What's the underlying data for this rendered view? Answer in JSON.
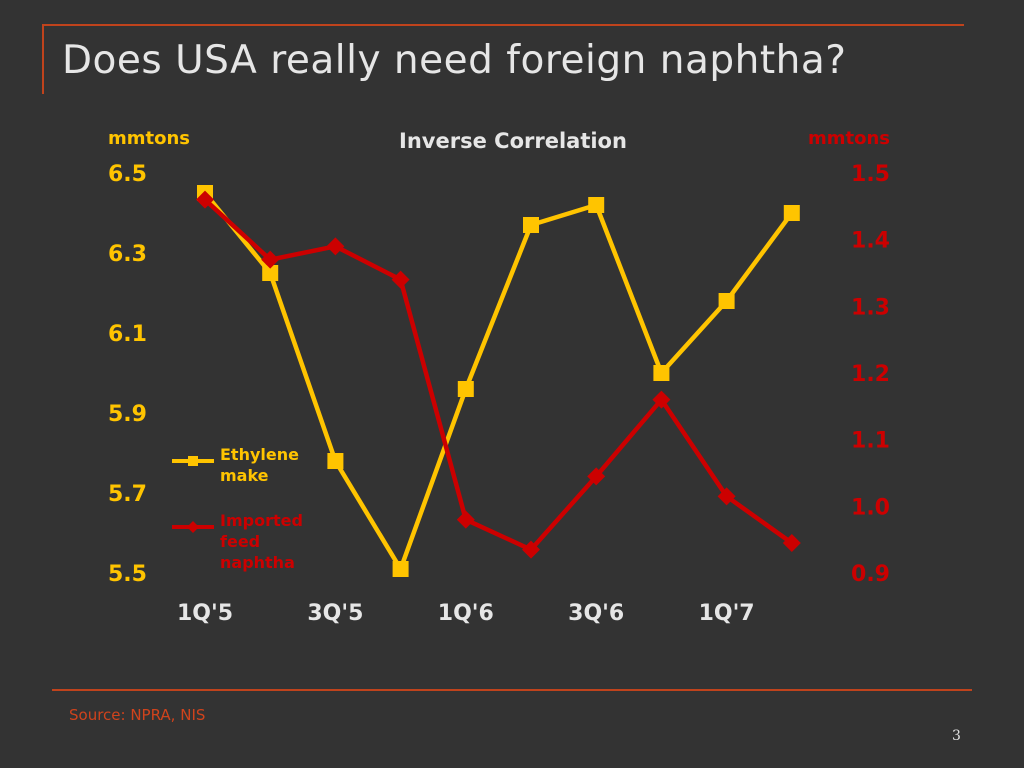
{
  "slide": {
    "title": "Does USA really need foreign naphtha?",
    "source": "Source: NPRA, NIS",
    "page_number": "3"
  },
  "colors": {
    "background": "#333333",
    "ethylene": "#ffc400",
    "naphtha": "#cc0000",
    "rule": "#c0431c",
    "text": "#e6e6e6"
  },
  "chart_data": {
    "type": "line",
    "title": "Inverse Correlation",
    "x": [
      "1Q'5",
      "2Q'5",
      "3Q'5",
      "4Q'5",
      "1Q'6",
      "2Q'6",
      "3Q'6",
      "4Q'6",
      "1Q'7",
      "2Q'7"
    ],
    "x_tick_labels": [
      "1Q'5",
      "3Q'5",
      "1Q'6",
      "3Q'6",
      "1Q'7"
    ],
    "y_left": {
      "label": "mmtons",
      "range": [
        5.5,
        6.5
      ],
      "ticks": [
        "6.5",
        "6.3",
        "6.1",
        "5.9",
        "5.7",
        "5.5"
      ]
    },
    "y_right": {
      "label": "mmtons",
      "range": [
        0.9,
        1.5
      ],
      "ticks": [
        "1.5",
        "1.4",
        "1.3",
        "1.2",
        "1.1",
        "1.0",
        "0.9"
      ]
    },
    "grid": false,
    "legend_position": "left-middle",
    "series": [
      {
        "name": "Ethylene make",
        "axis": "left",
        "marker": "square",
        "values": [
          6.45,
          6.25,
          5.78,
          5.51,
          5.96,
          6.37,
          6.42,
          6.0,
          6.18,
          6.4
        ]
      },
      {
        "name": "Imported feed naphtha",
        "axis": "right",
        "marker": "diamond",
        "values": [
          1.46,
          1.37,
          1.39,
          1.34,
          0.98,
          0.935,
          1.045,
          1.16,
          1.015,
          0.945
        ]
      }
    ]
  }
}
